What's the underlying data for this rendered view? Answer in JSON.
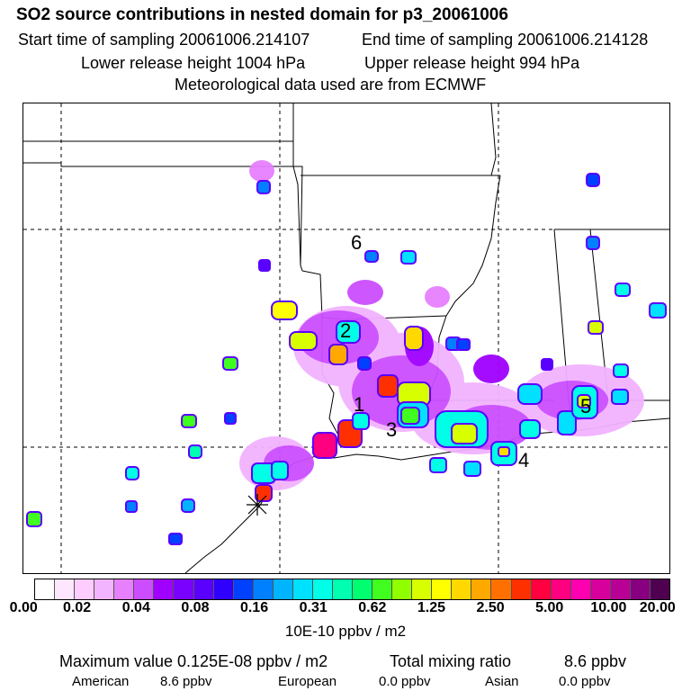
{
  "header": {
    "title": "SO2 source contributions in nested domain for p3_20061006",
    "start_label": "Start time of sampling 20061006.214107",
    "end_label": "End time of sampling 20061006.214128",
    "lower_release": "Lower release height 1004 hPa",
    "upper_release": "Upper release height  994 hPa",
    "met_data": "Meteorological data used are from ECMWF"
  },
  "map": {
    "region_labels": [
      "6",
      "2",
      "1",
      "3",
      "4",
      "5"
    ]
  },
  "colorbar": {
    "colors": [
      "#ffffff",
      "#ffe6ff",
      "#ffccff",
      "#f2b3ff",
      "#e680ff",
      "#cc4dff",
      "#a000ff",
      "#7a00ff",
      "#5a00ff",
      "#3000ff",
      "#0040ff",
      "#0080ff",
      "#00b4ff",
      "#00e0ff",
      "#00ffe6",
      "#00ffb0",
      "#00ff70",
      "#40ff20",
      "#90ff00",
      "#d8ff00",
      "#ffff00",
      "#ffd800",
      "#ffa800",
      "#ff7000",
      "#ff3000",
      "#ff0040",
      "#ff0080",
      "#ff00b0",
      "#d8009c",
      "#b80096",
      "#880080",
      "#500050"
    ],
    "ticks": [
      "0.00",
      "0.02",
      "0.04",
      "0.08",
      "0.16",
      "0.31",
      "0.62",
      "1.25",
      "2.50",
      "5.00",
      "10.00",
      "20.00"
    ],
    "units": "10E-10 ppbv / m2"
  },
  "footer": {
    "max_value": "Maximum value  0.125E-08 ppbv / m2",
    "total_label": "Total mixing ratio",
    "total_value": "8.6 ppbv",
    "american_label": "American",
    "american_value": "8.6 ppbv",
    "european_label": "European",
    "european_value": "0.0 ppbv",
    "asian_label": "Asian",
    "asian_value": "0.0 ppbv"
  }
}
